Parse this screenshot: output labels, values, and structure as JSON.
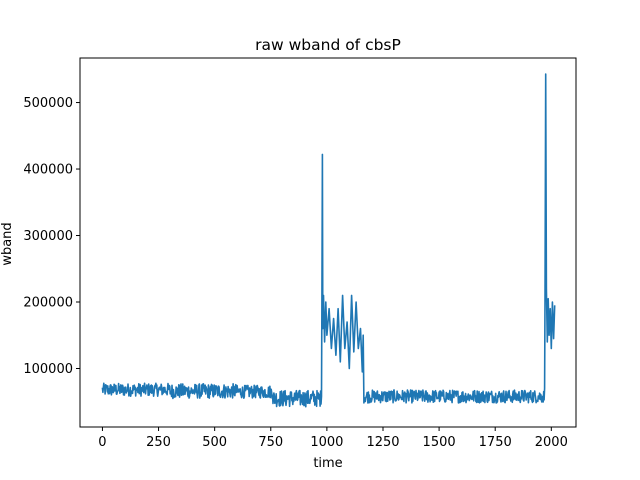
{
  "chart_data": {
    "type": "line",
    "title": "raw wband of cbsP",
    "xlabel": "time",
    "ylabel": "wband",
    "xlim": [
      -100,
      2110
    ],
    "ylim": [
      12000,
      567000
    ],
    "xticks": [
      0,
      250,
      500,
      750,
      1000,
      1250,
      1500,
      1750,
      2000
    ],
    "yticks": [
      100000,
      200000,
      300000,
      400000,
      500000
    ],
    "grid": false,
    "legend": "none",
    "series": [
      {
        "color": "#1f77b4",
        "segments": [
          {
            "x_start": 0,
            "x_end": 300,
            "mean": 68000,
            "noise": 7000
          },
          {
            "x_start": 300,
            "x_end": 600,
            "mean": 66000,
            "noise": 8000
          },
          {
            "x_start": 600,
            "x_end": 760,
            "mean": 65000,
            "noise": 7000
          },
          {
            "x_start": 760,
            "x_end": 976,
            "mean": 55000,
            "noise": 9000
          }
        ],
        "points": [
          [
            976,
            58000
          ],
          [
            978,
            200000
          ],
          [
            980,
            422000
          ],
          [
            982,
            160000
          ],
          [
            985,
            210000
          ],
          [
            990,
            140000
          ],
          [
            995,
            200000
          ],
          [
            1000,
            150000
          ],
          [
            1010,
            190000
          ],
          [
            1020,
            130000
          ],
          [
            1030,
            175000
          ],
          [
            1040,
            120000
          ],
          [
            1050,
            190000
          ],
          [
            1060,
            110000
          ],
          [
            1070,
            210000
          ],
          [
            1080,
            130000
          ],
          [
            1090,
            170000
          ],
          [
            1100,
            100000
          ],
          [
            1110,
            210000
          ],
          [
            1120,
            125000
          ],
          [
            1130,
            200000
          ],
          [
            1140,
            130000
          ],
          [
            1150,
            160000
          ],
          [
            1158,
            95000
          ],
          [
            1162,
            150000
          ]
        ],
        "segments_after": [
          {
            "x_start": 1165,
            "x_end": 1400,
            "mean": 58000,
            "noise": 7000
          },
          {
            "x_start": 1400,
            "x_end": 1700,
            "mean": 58000,
            "noise": 7000
          },
          {
            "x_start": 1700,
            "x_end": 1970,
            "mean": 58000,
            "noise": 7000
          }
        ],
        "points_after": [
          [
            1970,
            70000
          ],
          [
            1972,
            200000
          ],
          [
            1975,
            543000
          ],
          [
            1978,
            220000
          ],
          [
            1982,
            140000
          ],
          [
            1986,
            205000
          ],
          [
            1990,
            150000
          ],
          [
            1995,
            190000
          ],
          [
            2000,
            130000
          ],
          [
            2005,
            200000
          ],
          [
            2010,
            145000
          ],
          [
            2015,
            195000
          ]
        ]
      }
    ]
  }
}
